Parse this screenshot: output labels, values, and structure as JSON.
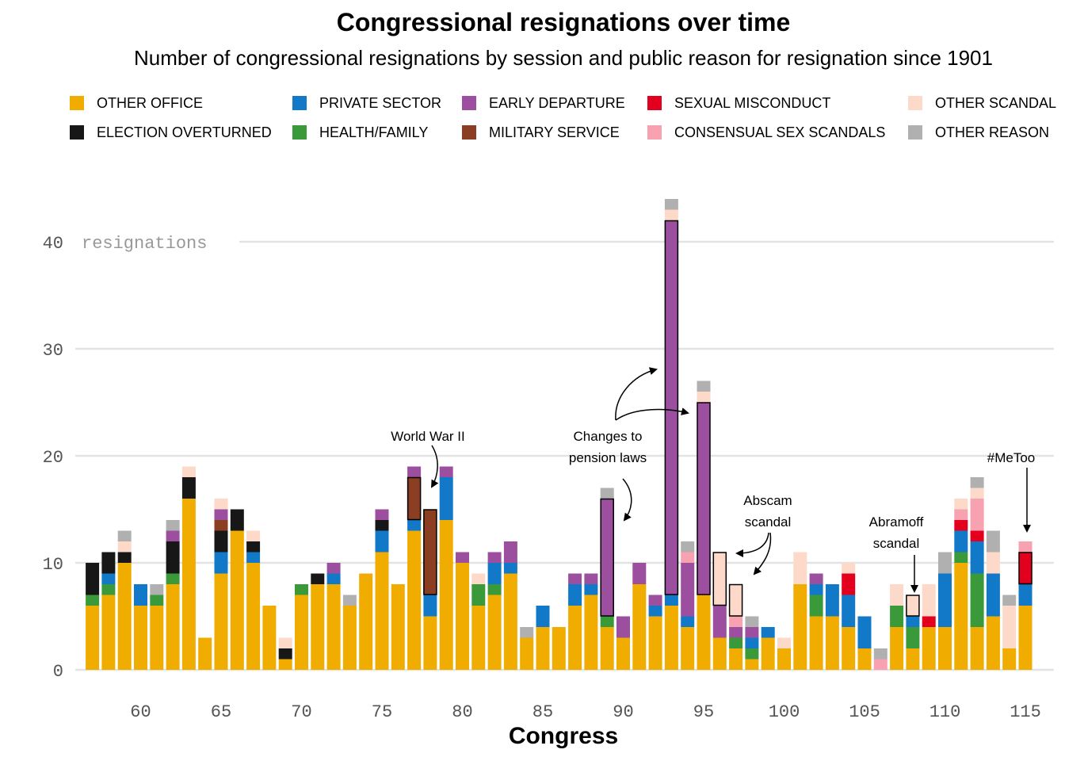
{
  "title": "Congressional resignations over time",
  "subtitle": "Number of congressional resignations by session and public reason for resignation since 1901",
  "legend": [
    {
      "key": "other_office",
      "label": "OTHER OFFICE",
      "color": "#f0ad00"
    },
    {
      "key": "private_sector",
      "label": "PRIVATE SECTOR",
      "color": "#1278c8"
    },
    {
      "key": "early_departure",
      "label": "EARLY DEPARTURE",
      "color": "#9b4f9e"
    },
    {
      "key": "sexual_misconduct",
      "label": "SEXUAL MISCONDUCT",
      "color": "#e3001f"
    },
    {
      "key": "other_scandal",
      "label": "OTHER SCANDAL",
      "color": "#fcd9c8"
    },
    {
      "key": "election_overturned",
      "label": "ELECTION OVERTURNED",
      "color": "#171717"
    },
    {
      "key": "health_family",
      "label": "HEALTH/FAMILY",
      "color": "#3a9a3a"
    },
    {
      "key": "military_service",
      "label": "MILITARY SERVICE",
      "color": "#8b3e22"
    },
    {
      "key": "consensual_sex",
      "label": "CONSENSUAL SEX SCANDALS",
      "color": "#f8a1b1"
    },
    {
      "key": "other_reason",
      "label": "OTHER REASON",
      "color": "#b0b0b0"
    }
  ],
  "annotations": [
    {
      "id": "ww2",
      "lines": [
        "World War II"
      ]
    },
    {
      "id": "pension",
      "lines": [
        "Changes to",
        "pension laws"
      ]
    },
    {
      "id": "abscam",
      "lines": [
        "Abscam",
        "scandal"
      ]
    },
    {
      "id": "abramoff",
      "lines": [
        "Abramoff",
        "scandal"
      ]
    },
    {
      "id": "metoo",
      "lines": [
        "#MeToo"
      ]
    }
  ],
  "chart_data": {
    "type": "bar",
    "stacked": true,
    "title": "Congressional resignations over time",
    "subtitle": "Number of congressional resignations by session and public reason for resignation since 1901",
    "xlabel": "Congress",
    "ylabel": "resignations",
    "ylim": [
      0,
      45
    ],
    "xlim": [
      56,
      116
    ],
    "yticks": [
      0,
      10,
      20,
      30,
      40
    ],
    "xticks": [
      60,
      65,
      70,
      75,
      80,
      85,
      90,
      95,
      100,
      105,
      110,
      115
    ],
    "grid": "horizontal",
    "legend_position": "top",
    "series_order": [
      "other_office",
      "health_family",
      "private_sector",
      "election_overturned",
      "military_service",
      "early_departure",
      "sexual_misconduct",
      "consensual_sex",
      "other_scandal",
      "other_reason"
    ],
    "congresses": [
      {
        "c": 57,
        "s": {
          "other_office": 6,
          "health_family": 1,
          "election_overturned": 3
        }
      },
      {
        "c": 58,
        "s": {
          "other_office": 7,
          "election_overturned": 2,
          "private_sector": 1,
          "health_family": 1
        }
      },
      {
        "c": 59,
        "s": {
          "other_office": 10,
          "election_overturned": 1,
          "other_scandal": 1,
          "other_reason": 1
        }
      },
      {
        "c": 60,
        "s": {
          "other_office": 6,
          "private_sector": 2
        }
      },
      {
        "c": 61,
        "s": {
          "other_office": 6,
          "health_family": 1,
          "other_reason": 1
        }
      },
      {
        "c": 62,
        "s": {
          "other_office": 8,
          "election_overturned": 3,
          "health_family": 1,
          "early_departure": 1,
          "other_reason": 1
        }
      },
      {
        "c": 63,
        "s": {
          "other_office": 16,
          "election_overturned": 2,
          "other_scandal": 1
        }
      },
      {
        "c": 64,
        "s": {
          "other_office": 3
        }
      },
      {
        "c": 65,
        "s": {
          "other_office": 9,
          "election_overturned": 2,
          "private_sector": 2,
          "early_departure": 1,
          "military_service": 1,
          "other_scandal": 1
        }
      },
      {
        "c": 66,
        "s": {
          "other_office": 13,
          "election_overturned": 2
        }
      },
      {
        "c": 67,
        "s": {
          "other_office": 10,
          "election_overturned": 1,
          "private_sector": 1,
          "other_scandal": 1
        }
      },
      {
        "c": 68,
        "s": {
          "other_office": 6
        }
      },
      {
        "c": 69,
        "s": {
          "other_office": 1,
          "election_overturned": 1,
          "other_scandal": 1
        }
      },
      {
        "c": 70,
        "s": {
          "other_office": 7,
          "health_family": 1
        }
      },
      {
        "c": 71,
        "s": {
          "other_office": 8,
          "election_overturned": 1
        }
      },
      {
        "c": 72,
        "s": {
          "other_office": 8,
          "private_sector": 1,
          "early_departure": 1
        }
      },
      {
        "c": 73,
        "s": {
          "other_office": 6,
          "other_reason": 1
        }
      },
      {
        "c": 74,
        "s": {
          "other_office": 9
        }
      },
      {
        "c": 75,
        "s": {
          "other_office": 11,
          "election_overturned": 1,
          "private_sector": 2,
          "early_departure": 1
        }
      },
      {
        "c": 76,
        "s": {
          "other_office": 8
        }
      },
      {
        "c": 77,
        "s": {
          "other_office": 13,
          "private_sector": 1,
          "early_departure": 1,
          "military_service": 4
        },
        "outline": "military_service"
      },
      {
        "c": 78,
        "s": {
          "other_office": 5,
          "private_sector": 2,
          "military_service": 8
        },
        "outline": "military_service"
      },
      {
        "c": 79,
        "s": {
          "other_office": 14,
          "private_sector": 4,
          "early_departure": 1
        }
      },
      {
        "c": 80,
        "s": {
          "other_office": 10,
          "early_departure": 1
        }
      },
      {
        "c": 81,
        "s": {
          "other_office": 6,
          "health_family": 2,
          "other_scandal": 1
        }
      },
      {
        "c": 82,
        "s": {
          "other_office": 7,
          "private_sector": 2,
          "health_family": 1,
          "early_departure": 1
        }
      },
      {
        "c": 83,
        "s": {
          "other_office": 9,
          "private_sector": 1,
          "early_departure": 2
        }
      },
      {
        "c": 84,
        "s": {
          "other_office": 3,
          "other_reason": 1
        }
      },
      {
        "c": 85,
        "s": {
          "other_office": 4,
          "private_sector": 2
        }
      },
      {
        "c": 86,
        "s": {
          "other_office": 4
        }
      },
      {
        "c": 87,
        "s": {
          "other_office": 6,
          "private_sector": 2,
          "early_departure": 1
        }
      },
      {
        "c": 88,
        "s": {
          "other_office": 7,
          "private_sector": 1,
          "early_departure": 1
        }
      },
      {
        "c": 89,
        "s": {
          "other_office": 4,
          "health_family": 1,
          "early_departure": 11,
          "other_reason": 1
        },
        "outline": "early_departure"
      },
      {
        "c": 90,
        "s": {
          "other_office": 3,
          "early_departure": 2
        }
      },
      {
        "c": 91,
        "s": {
          "other_office": 8,
          "early_departure": 2
        }
      },
      {
        "c": 92,
        "s": {
          "other_office": 5,
          "private_sector": 1,
          "early_departure": 1
        }
      },
      {
        "c": 93,
        "s": {
          "other_office": 6,
          "private_sector": 1,
          "early_departure": 35,
          "other_scandal": 1,
          "other_reason": 1
        },
        "outline": "early_departure"
      },
      {
        "c": 94,
        "s": {
          "other_office": 4,
          "private_sector": 1,
          "early_departure": 5,
          "consensual_sex": 1,
          "other_reason": 1
        }
      },
      {
        "c": 95,
        "s": {
          "other_office": 7,
          "early_departure": 18,
          "other_scandal": 1,
          "other_reason": 1
        },
        "outline": "early_departure"
      },
      {
        "c": 96,
        "s": {
          "other_office": 3,
          "early_departure": 3,
          "other_scandal": 5
        },
        "outline": "other_scandal"
      },
      {
        "c": 97,
        "s": {
          "other_office": 2,
          "health_family": 1,
          "early_departure": 1,
          "consensual_sex": 1,
          "other_scandal": 3
        },
        "outline": "other_scandal"
      },
      {
        "c": 98,
        "s": {
          "other_office": 1,
          "private_sector": 1,
          "health_family": 1,
          "early_departure": 1,
          "other_reason": 1
        }
      },
      {
        "c": 99,
        "s": {
          "other_office": 3,
          "private_sector": 1
        }
      },
      {
        "c": 100,
        "s": {
          "other_office": 2,
          "other_scandal": 1
        }
      },
      {
        "c": 101,
        "s": {
          "other_office": 8,
          "other_scandal": 3
        }
      },
      {
        "c": 102,
        "s": {
          "other_office": 5,
          "private_sector": 1,
          "health_family": 2,
          "early_departure": 1
        }
      },
      {
        "c": 103,
        "s": {
          "other_office": 5,
          "private_sector": 3
        }
      },
      {
        "c": 104,
        "s": {
          "other_office": 4,
          "private_sector": 3,
          "sexual_misconduct": 2,
          "other_scandal": 1
        }
      },
      {
        "c": 105,
        "s": {
          "other_office": 2,
          "private_sector": 3
        }
      },
      {
        "c": 106,
        "s": {
          "consensual_sex": 1,
          "other_reason": 1
        }
      },
      {
        "c": 107,
        "s": {
          "other_office": 4,
          "health_family": 2,
          "other_scandal": 2
        }
      },
      {
        "c": 108,
        "s": {
          "other_office": 2,
          "private_sector": 1,
          "health_family": 2,
          "other_scandal": 2
        },
        "outline": "other_scandal"
      },
      {
        "c": 109,
        "s": {
          "other_office": 4,
          "sexual_misconduct": 1,
          "other_scandal": 3
        }
      },
      {
        "c": 110,
        "s": {
          "other_office": 4,
          "private_sector": 5,
          "other_reason": 2
        }
      },
      {
        "c": 111,
        "s": {
          "other_office": 10,
          "private_sector": 2,
          "health_family": 1,
          "sexual_misconduct": 1,
          "consensual_sex": 1,
          "other_scandal": 1
        }
      },
      {
        "c": 112,
        "s": {
          "other_office": 4,
          "private_sector": 3,
          "health_family": 5,
          "sexual_misconduct": 1,
          "consensual_sex": 3,
          "other_scandal": 1,
          "other_reason": 1
        }
      },
      {
        "c": 113,
        "s": {
          "other_office": 5,
          "private_sector": 4,
          "other_scandal": 2,
          "other_reason": 2
        }
      },
      {
        "c": 114,
        "s": {
          "other_office": 2,
          "other_scandal": 4,
          "other_reason": 1
        }
      },
      {
        "c": 115,
        "s": {
          "other_office": 6,
          "private_sector": 2,
          "sexual_misconduct": 3,
          "consensual_sex": 1
        },
        "outline": "sexual_misconduct"
      }
    ]
  }
}
